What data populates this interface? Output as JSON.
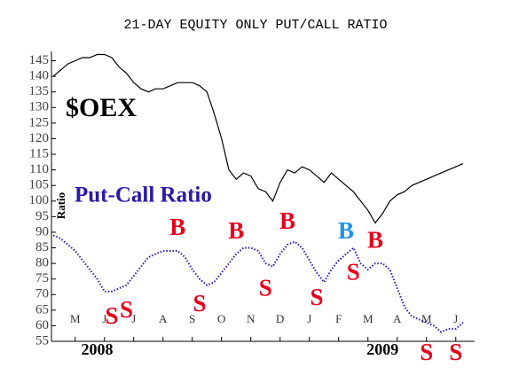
{
  "chart_data": {
    "type": "line",
    "title": "21-DAY EQUITY ONLY PUT/CALL RATIO",
    "categories": [
      null,
      null,
      null,
      "M",
      null,
      null,
      null,
      "J",
      null,
      null,
      null,
      "J",
      null,
      null,
      null,
      "A",
      null,
      null,
      null,
      "S",
      null,
      null,
      null,
      "O",
      null,
      null,
      null,
      "N",
      null,
      null,
      null,
      "D",
      null,
      null,
      null,
      "J",
      null,
      null,
      null,
      "F",
      null,
      null,
      null,
      "M",
      null,
      null,
      null,
      "A",
      null,
      null,
      null,
      "M",
      null,
      null,
      null,
      "J",
      null
    ],
    "x_groups": [
      {
        "label": "2008",
        "index": 6
      },
      {
        "label": "2009",
        "index": 45
      }
    ],
    "series": [
      {
        "name": "$OEX",
        "color": "#000000",
        "style": "solid",
        "values": [
          140,
          142,
          144,
          145,
          146,
          146,
          147,
          147,
          146,
          143,
          141,
          138,
          136,
          135,
          136,
          136,
          137,
          138,
          138,
          138,
          137,
          135,
          128,
          120,
          110,
          107,
          109,
          108,
          104,
          103,
          100,
          106,
          110,
          109,
          111,
          110,
          108,
          106,
          109,
          107,
          105,
          103,
          100,
          97,
          93,
          96,
          100,
          102,
          103,
          105,
          106,
          107,
          108,
          109,
          110,
          111,
          112
        ]
      },
      {
        "name": "Put-Call Ratio",
        "color": "#2a1aa8",
        "style": "dotted",
        "values": [
          89,
          88,
          86,
          84,
          81,
          78,
          75,
          71,
          71,
          72,
          73,
          76,
          79,
          82,
          83,
          84,
          84,
          84,
          82,
          78,
          75,
          73,
          74,
          77,
          80,
          83,
          85,
          85,
          84,
          80,
          79,
          83,
          86,
          87,
          85,
          81,
          77,
          74,
          78,
          81,
          83,
          85,
          80,
          78,
          80,
          80,
          78,
          72,
          66,
          63,
          62,
          61,
          60,
          58,
          59,
          59,
          61
        ]
      }
    ],
    "y_axis_label": "Ratio",
    "annotations": [
      {
        "text": "B",
        "index": 17,
        "series": 1,
        "placement": "above",
        "color": "#e8001c"
      },
      {
        "text": "S",
        "index": 8,
        "series": 1,
        "placement": "below",
        "color": "#e8001c"
      },
      {
        "text": "S",
        "index": 10,
        "series": 1,
        "placement": "below",
        "color": "#e8001c"
      },
      {
        "text": "S",
        "index": 20,
        "series": 1,
        "placement": "below",
        "color": "#e8001c"
      },
      {
        "text": "B",
        "index": 25,
        "series": 1,
        "placement": "above",
        "color": "#e8001c"
      },
      {
        "text": "S",
        "index": 29,
        "series": 1,
        "placement": "below",
        "color": "#e8001c"
      },
      {
        "text": "B",
        "index": 32,
        "series": 1,
        "placement": "above",
        "color": "#e8001c"
      },
      {
        "text": "S",
        "index": 36,
        "series": 1,
        "placement": "below",
        "color": "#e8001c"
      },
      {
        "text": "B",
        "index": 40,
        "series": 1,
        "placement": "above",
        "color": "#1e90e8"
      },
      {
        "text": "S",
        "index": 41,
        "series": 1,
        "placement": "below",
        "color": "#e8001c"
      },
      {
        "text": "B",
        "index": 44,
        "series": 1,
        "placement": "above",
        "color": "#e8001c"
      },
      {
        "text": "S",
        "index": 51,
        "series": 1,
        "placement": "bottom",
        "color": "#e8001c"
      },
      {
        "text": "S",
        "index": 55,
        "series": 1,
        "placement": "bottom",
        "color": "#e8001c"
      }
    ],
    "ylim": [
      55,
      148
    ],
    "yticks": [
      55,
      60,
      65,
      70,
      75,
      80,
      85,
      90,
      95,
      100,
      105,
      110,
      115,
      120,
      125,
      130,
      135,
      140,
      145
    ]
  }
}
